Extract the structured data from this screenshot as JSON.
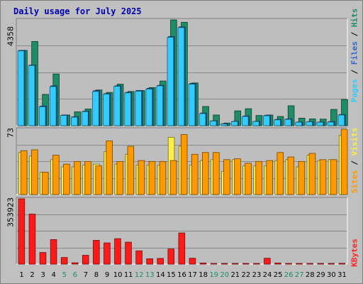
{
  "title": "Daily usage for July 2025",
  "legends": {
    "top": {
      "pages": "Pages",
      "files": "Files",
      "hits": "Hits",
      "sep": " / "
    },
    "middle": {
      "sites": "Sites",
      "visits": "Visits",
      "sep": " / "
    },
    "bottom": {
      "kbytes": "KBytes"
    }
  },
  "colors": {
    "background": "#c0c0c0",
    "plot_bg": "#bebebe",
    "hits": "#1e8c66",
    "files": "#1a5fa6",
    "pages": "#33ccff",
    "visits": "#ffee44",
    "sites": "#ff9900",
    "kbytes": "#ff1a1a",
    "weekend_label": "#1e8c66",
    "title": "#0000b0"
  },
  "chart_data": [
    {
      "type": "bar",
      "panel": "hits-files-pages",
      "ymax_label": "4358",
      "ylim": [
        0,
        4358
      ],
      "categories": [
        "1",
        "2",
        "3",
        "4",
        "5",
        "6",
        "7",
        "8",
        "9",
        "10",
        "11",
        "12",
        "13",
        "14",
        "15",
        "16",
        "17",
        "18",
        "19",
        "20",
        "21",
        "22",
        "23",
        "24",
        "25",
        "26",
        "27",
        "28",
        "29",
        "30",
        "31"
      ],
      "weekend_days": [
        5,
        6,
        12,
        13,
        19,
        20,
        26,
        27
      ],
      "series": [
        {
          "name": "Hits",
          "values": [
            3100,
            3470,
            1290,
            2130,
            440,
            570,
            690,
            1470,
            1370,
            1710,
            1410,
            1450,
            1570,
            1840,
            4358,
            4260,
            1760,
            790,
            440,
            110,
            610,
            700,
            420,
            440,
            380,
            820,
            310,
            280,
            270,
            670,
            1080
          ]
        },
        {
          "name": "Files",
          "values": [
            3100,
            2500,
            810,
            1640,
            440,
            370,
            600,
            1440,
            1320,
            1640,
            1370,
            1450,
            1540,
            1660,
            3670,
            4070,
            1740,
            520,
            200,
            80,
            180,
            400,
            180,
            430,
            260,
            280,
            150,
            170,
            150,
            170,
            460
          ]
        },
        {
          "name": "Pages",
          "values": [
            3080,
            2480,
            780,
            1610,
            420,
            350,
            580,
            1410,
            1300,
            1620,
            1350,
            1420,
            1510,
            1640,
            3640,
            4040,
            1710,
            500,
            190,
            70,
            170,
            380,
            170,
            410,
            240,
            260,
            140,
            160,
            140,
            150,
            440
          ]
        }
      ]
    },
    {
      "type": "bar",
      "panel": "visits-sites",
      "ymax_label": "73",
      "ylim": [
        0,
        73
      ],
      "categories": [
        "1",
        "2",
        "3",
        "4",
        "5",
        "6",
        "7",
        "8",
        "9",
        "10",
        "11",
        "12",
        "13",
        "14",
        "15",
        "16",
        "17",
        "18",
        "19",
        "20",
        "21",
        "22",
        "23",
        "24",
        "25",
        "26",
        "27",
        "28",
        "29",
        "30",
        "31"
      ],
      "series": [
        {
          "name": "Visits",
          "values": [
            47,
            43,
            25,
            39,
            31,
            31,
            33,
            34,
            48,
            34,
            45,
            33,
            33,
            33,
            64,
            54,
            33,
            38,
            39,
            26,
            39,
            32,
            32,
            32,
            38,
            39,
            31,
            44,
            38,
            39,
            66
          ]
        },
        {
          "name": "Sites",
          "values": [
            49,
            50,
            25,
            44,
            34,
            37,
            37,
            32,
            60,
            37,
            54,
            38,
            37,
            37,
            38,
            67,
            45,
            47,
            47,
            39,
            40,
            35,
            37,
            38,
            47,
            42,
            37,
            46,
            39,
            39,
            73
          ]
        }
      ]
    },
    {
      "type": "bar",
      "panel": "kbytes",
      "ymax_label": "353923",
      "ylim": [
        0,
        353923
      ],
      "categories": [
        "1",
        "2",
        "3",
        "4",
        "5",
        "6",
        "7",
        "8",
        "9",
        "10",
        "11",
        "12",
        "13",
        "14",
        "15",
        "16",
        "17",
        "18",
        "19",
        "20",
        "21",
        "22",
        "23",
        "24",
        "25",
        "26",
        "27",
        "28",
        "29",
        "30",
        "31"
      ],
      "series": [
        {
          "name": "KBytes",
          "values": [
            353923,
            271000,
            63000,
            133000,
            36000,
            7200,
            48000,
            129000,
            115000,
            138000,
            119000,
            72000,
            29000,
            31000,
            82000,
            169000,
            32000,
            6000,
            3000,
            1500,
            2000,
            2000,
            2500,
            32000,
            6000,
            1800,
            1500,
            1400,
            1400,
            1700,
            4500
          ]
        }
      ]
    }
  ]
}
